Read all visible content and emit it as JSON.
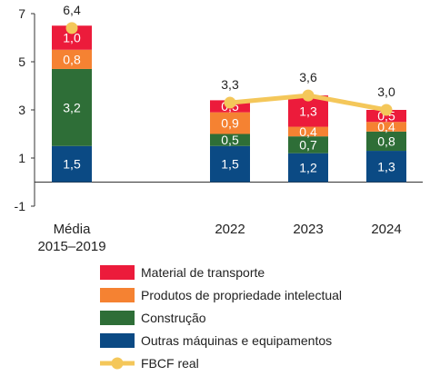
{
  "chart_data": {
    "type": "bar",
    "stacked": true,
    "categories": [
      "Média\n2015–2019",
      "2022",
      "2023",
      "2024"
    ],
    "ylim": [
      -1,
      7
    ],
    "yticks": [
      "7",
      "5",
      "3",
      "1",
      "-1"
    ],
    "yticks_values": [
      7,
      5,
      3,
      1,
      -1
    ],
    "grid": false,
    "legend_position": "bottom",
    "series": [
      {
        "name": "Outras máquinas e equipamentos",
        "color": "#0b4a84",
        "values": [
          1.5,
          1.5,
          1.2,
          1.3
        ],
        "labels": [
          "1,5",
          "1,5",
          "1,2",
          "1,3"
        ]
      },
      {
        "name": "Construção",
        "color": "#2e6e37",
        "values": [
          3.2,
          0.5,
          0.7,
          0.8
        ],
        "labels": [
          "3,2",
          "0,5",
          "0,7",
          "0,8"
        ]
      },
      {
        "name": "Produtos de propriedade intelectual",
        "color": "#f58232",
        "values": [
          0.8,
          0.9,
          0.4,
          0.4
        ],
        "labels": [
          "0,8",
          "0,9",
          "0,4",
          "0,4"
        ]
      },
      {
        "name": "Material de transporte",
        "color": "#ec1b3b",
        "values": [
          1.0,
          0.5,
          1.3,
          0.5
        ],
        "labels": [
          "1,0",
          "0,5",
          "1,3",
          "0,5"
        ]
      }
    ],
    "line": {
      "name": "FBCF real",
      "color": "#f4c75a",
      "values": [
        6.4,
        3.3,
        3.6,
        3.0
      ],
      "labels": [
        "6,4",
        "3,3",
        "3,6",
        "3,0"
      ],
      "connect_from_category": 1
    },
    "legend_order": [
      "Material de transporte",
      "Produtos de propriedade intelectual",
      "Construção",
      "Outras máquinas e equipamentos",
      "FBCF real"
    ]
  }
}
